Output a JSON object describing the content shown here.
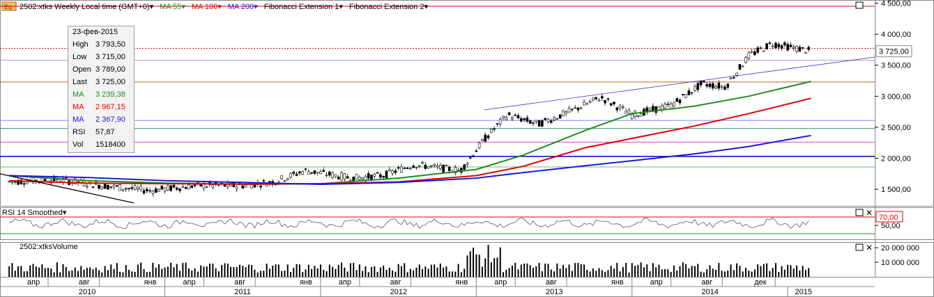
{
  "main_panel": {
    "symbol_label": "2502:xtks Weekly Local time (GMT+0)",
    "ma55_label": "MA 55",
    "ma100_label": "MA 100",
    "ma200_label": "MA 200",
    "fib1_label": "Fibonacci Extension 1",
    "fib2_label": "Fibonacci Extension 2",
    "last_price_label": "3 725,00"
  },
  "rsi_panel": {
    "label": "RSI 14 Smoothed",
    "level_label": "70,00",
    "tick_label": "50,00"
  },
  "volume_panel": {
    "label": "2502:xtksVolume",
    "ticks": [
      "20 000 000",
      "10 000 000"
    ]
  },
  "tooltip": {
    "date": "23-фев-2015",
    "rows": [
      {
        "key": "High",
        "value": "3 793,50",
        "color": "#000000"
      },
      {
        "key": "Low",
        "value": "3 715,00",
        "color": "#000000"
      },
      {
        "key": "Open",
        "value": "3 789,00",
        "color": "#000000"
      },
      {
        "key": "Last",
        "value": "3 725,00",
        "color": "#000000"
      },
      {
        "key": "MA",
        "value": "3 239,38",
        "color": "#1e8c1e"
      },
      {
        "key": "MA",
        "value": "2 967,15",
        "color": "#e00000"
      },
      {
        "key": "MA",
        "value": "2 367,90",
        "color": "#1a1ad8"
      },
      {
        "key": "RSI",
        "value": "57,87",
        "color": "#000000"
      },
      {
        "key": "Vol",
        "value": "1518400",
        "color": "#000000"
      }
    ]
  },
  "colors": {
    "ma55": "#1e8c1e",
    "ma100": "#e00000",
    "ma200": "#1a1ad8",
    "candle_up": "#ffffff",
    "candle_down": "#000000"
  },
  "chart_data": {
    "type": "line",
    "title": "2502:xtks Weekly Local time (GMT+0)",
    "y_ticks": [
      "4 500,00",
      "4 000,00",
      "3 500,00",
      "3 000,00",
      "2 500,00",
      "2 000,00",
      "1 500,00"
    ],
    "ylim": [
      1300,
      4550
    ],
    "x_month_labels": [
      "апр",
      "авг",
      "янв",
      "апр",
      "авг",
      "янв",
      "апр",
      "авг",
      "янв",
      "апр",
      "авг",
      "янв",
      "апр",
      "авг",
      "дек"
    ],
    "x_year_labels": [
      "2010",
      "2011",
      "2012",
      "2013",
      "2014",
      "2015"
    ],
    "horizontal_levels": [
      4450,
      3770,
      3580,
      3230,
      2610,
      2480,
      2260,
      2030,
      1860
    ],
    "series": [
      {
        "name": "MA 55",
        "points": [
          [
            2010.0,
            1720
          ],
          [
            2010.5,
            1640
          ],
          [
            2011.0,
            1600
          ],
          [
            2011.5,
            1580
          ],
          [
            2012.0,
            1590
          ],
          [
            2012.5,
            1680
          ],
          [
            2013.0,
            1820
          ],
          [
            2013.3,
            2050
          ],
          [
            2013.7,
            2450
          ],
          [
            2014.0,
            2720
          ],
          [
            2014.4,
            2840
          ],
          [
            2014.75,
            3000
          ],
          [
            2015.15,
            3239
          ]
        ]
      },
      {
        "name": "MA 100",
        "points": [
          [
            2010.0,
            1640
          ],
          [
            2010.5,
            1600
          ],
          [
            2011.0,
            1590
          ],
          [
            2011.5,
            1585
          ],
          [
            2012.0,
            1590
          ],
          [
            2012.5,
            1620
          ],
          [
            2013.0,
            1720
          ],
          [
            2013.3,
            1870
          ],
          [
            2013.7,
            2170
          ],
          [
            2014.0,
            2320
          ],
          [
            2014.4,
            2520
          ],
          [
            2014.75,
            2720
          ],
          [
            2015.15,
            2967
          ]
        ]
      },
      {
        "name": "MA 200",
        "points": [
          [
            2010.0,
            1720
          ],
          [
            2010.5,
            1690
          ],
          [
            2011.0,
            1640
          ],
          [
            2011.5,
            1610
          ],
          [
            2012.0,
            1580
          ],
          [
            2012.5,
            1610
          ],
          [
            2013.0,
            1680
          ],
          [
            2013.3,
            1770
          ],
          [
            2013.7,
            1880
          ],
          [
            2014.0,
            1960
          ],
          [
            2014.4,
            2070
          ],
          [
            2014.75,
            2190
          ],
          [
            2015.15,
            2367
          ]
        ]
      }
    ],
    "rsi": {
      "levels": [
        70,
        50
      ],
      "last": 57.87
    },
    "volume": {
      "ylim": [
        0,
        22000000
      ]
    },
    "last": {
      "date": "23-фев-2015",
      "high": 3793.5,
      "low": 3715,
      "open": 3789,
      "close": 3725
    }
  }
}
